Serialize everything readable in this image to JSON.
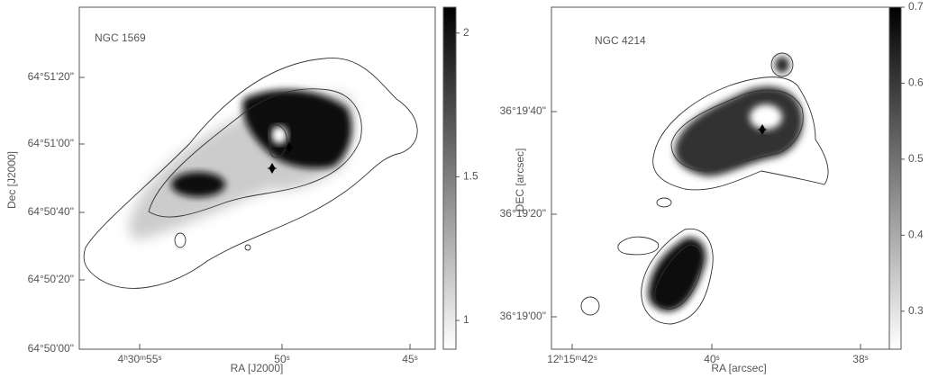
{
  "chart_data": [
    {
      "type": "map",
      "label": "NGC 1569",
      "xlabel": "RA [J2000]",
      "ylabel": "Dec [J2000]",
      "xtick_labels": [
        "4ʰ30ᵐ55ˢ",
        "50ˢ",
        "45ˢ"
      ],
      "ytick_labels": [
        "64°51'20\"",
        "64°51'00\"",
        "64°50'40\"",
        "64°50'20\"",
        "64°50'00\""
      ],
      "colorbar": {
        "lim": [
          0.9,
          2.09
        ],
        "ticks": [
          1,
          1.5,
          2
        ]
      }
    },
    {
      "type": "map",
      "label": "NGC 4214",
      "xlabel": "RA [arcsec]",
      "ylabel": "DEC [arcsec]",
      "xtick_labels": [
        "12ʰ15ᵐ42ˢ",
        "40ˢ",
        "38ˢ"
      ],
      "ytick_labels": [
        "36°19'40\"",
        "36°19'20\"",
        "36°19'00\""
      ],
      "colorbar": {
        "lim": [
          0.25,
          0.7
        ],
        "ticks": [
          0.3,
          0.4,
          0.5,
          0.6,
          0.7
        ]
      }
    }
  ]
}
